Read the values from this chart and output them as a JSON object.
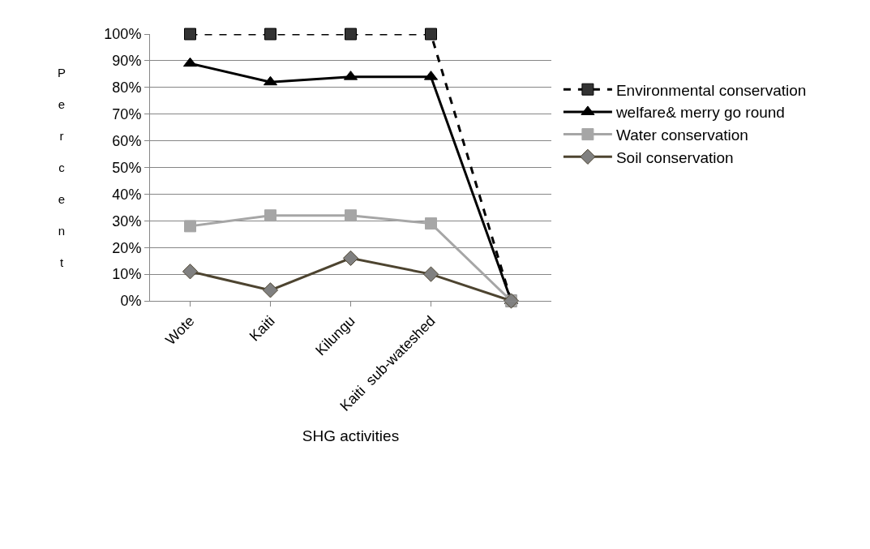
{
  "chart_data": {
    "type": "line",
    "xlabel": "SHG activities",
    "ylabel": "Percent",
    "categories": [
      "Wote",
      "Kaiti",
      "Kilungu",
      "Kaiti  sub-wateshed",
      null
    ],
    "ylim": [
      0,
      100
    ],
    "yticks": [
      {
        "value": 0,
        "label": "0%"
      },
      {
        "value": 10,
        "label": "10%"
      },
      {
        "value": 20,
        "label": "20%"
      },
      {
        "value": 30,
        "label": "30%"
      },
      {
        "value": 40,
        "label": "40%"
      },
      {
        "value": 50,
        "label": "50%"
      },
      {
        "value": 60,
        "label": "60%"
      },
      {
        "value": 70,
        "label": "70%"
      },
      {
        "value": 80,
        "label": "80%"
      },
      {
        "value": 90,
        "label": "90%"
      },
      {
        "value": 100,
        "label": "100%"
      }
    ],
    "grid": "y",
    "legend": "right",
    "series": [
      {
        "name": "Environmental conservation",
        "color": "#000000",
        "marker": "square",
        "line_style": "dashed",
        "values": [
          100,
          100,
          100,
          100,
          0
        ]
      },
      {
        "name": "welfare& merry go round",
        "color": "#000000",
        "marker": "triangle",
        "line_style": "solid",
        "values": [
          89,
          82,
          84,
          84,
          0
        ]
      },
      {
        "name": "Water conservation",
        "color": "#a6a6a6",
        "marker": "square",
        "line_style": "solid",
        "values": [
          28,
          32,
          32,
          29,
          0
        ]
      },
      {
        "name": "Soil conservation",
        "color": "#4d4430",
        "marker": "diamond",
        "line_style": "solid",
        "values": [
          11,
          4,
          16,
          10,
          0
        ]
      }
    ]
  }
}
